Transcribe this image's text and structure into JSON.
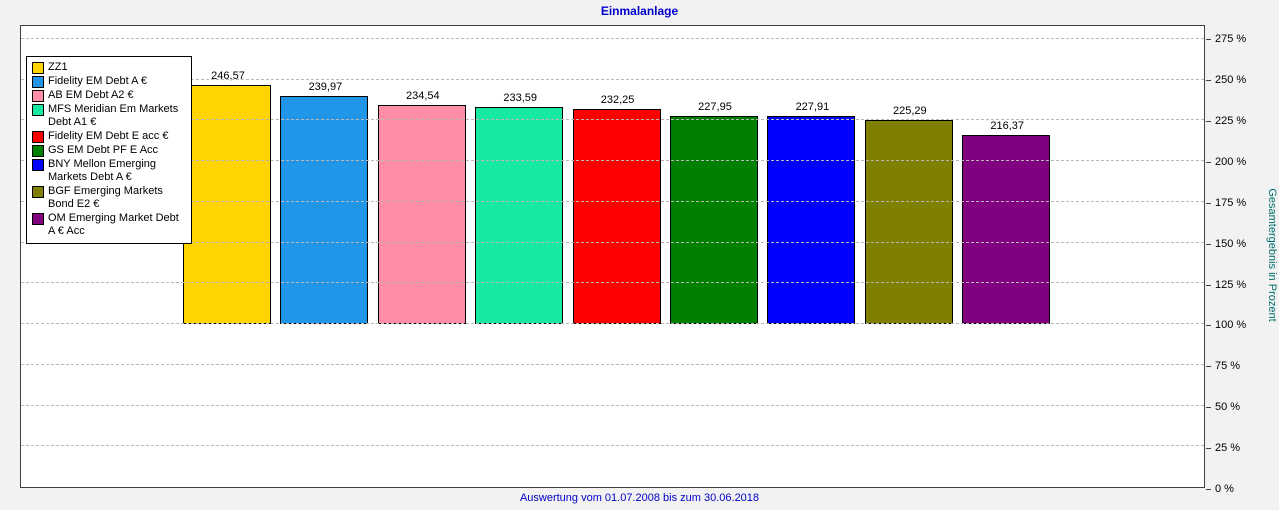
{
  "title": "Einmalanlage",
  "caption": "Auswertung vom 01.07.2008 bis zum 30.06.2018",
  "y_axis": {
    "label": "Gesamtergebnis in Prozent",
    "ticks": [
      "275 %",
      "250 %",
      "225 %",
      "200 %",
      "175 %",
      "150 %",
      "125 %",
      "100 %",
      "75 %",
      "50 %",
      "25 %",
      "0 %"
    ]
  },
  "chart_data": {
    "type": "bar",
    "title": "Einmalanlage",
    "xlabel": "",
    "ylabel": "Gesamtergebnis in Prozent",
    "ylim": [
      0,
      275
    ],
    "tick_step": 25,
    "baseline": 100,
    "grid": "horizontal-dashed",
    "legend_position": "top-left",
    "series": [
      {
        "name": "ZZ1",
        "value": 246.57,
        "label": "246,57",
        "color": "#ffd400"
      },
      {
        "name": "Fidelity EM Debt A €",
        "value": 239.97,
        "label": "239,97",
        "color": "#2196e8"
      },
      {
        "name": "AB EM Debt A2 €",
        "value": 234.54,
        "label": "234,54",
        "color": "#ff8da6"
      },
      {
        "name": "MFS Meridian Em Markets Debt A1 €",
        "value": 233.59,
        "label": "233,59",
        "color": "#17e8a2"
      },
      {
        "name": "Fidelity EM Debt E acc €",
        "value": 232.25,
        "label": "232,25",
        "color": "#ff0000"
      },
      {
        "name": "GS EM Debt PF E Acc",
        "value": 227.95,
        "label": "227,95",
        "color": "#008000"
      },
      {
        "name": "BNY Mellon Emerging Markets Debt A €",
        "value": 227.91,
        "label": "227,91",
        "color": "#0000ff"
      },
      {
        "name": "BGF Emerging Markets Bond E2 €",
        "value": 225.29,
        "label": "225,29",
        "color": "#808000"
      },
      {
        "name": "OM Emerging Market Debt A € Acc",
        "value": 216.37,
        "label": "216,37",
        "color": "#800080"
      }
    ]
  }
}
